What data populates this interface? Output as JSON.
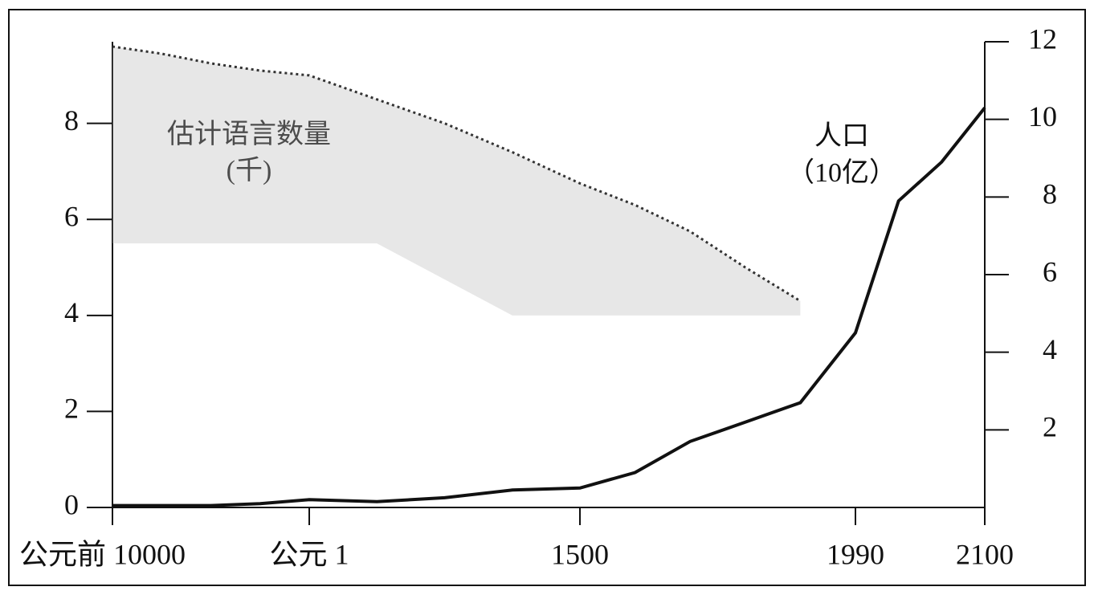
{
  "chart_data": {
    "type": "line",
    "categories": [
      "公元前 10000",
      null,
      null,
      null,
      "公元 1",
      null,
      null,
      null,
      "1500",
      null,
      null,
      null,
      null,
      "1990",
      null,
      null,
      "2100"
    ],
    "series": [
      {
        "name": "估计语言数量",
        "color": "#333333",
        "values": [
          9.6,
          9.45,
          9.25,
          9.1,
          9.0,
          8.5,
          8.0,
          7.4,
          6.75,
          6.3,
          5.75,
          5.0,
          4.3,
          null,
          null,
          null,
          null
        ]
      },
      {
        "name": "人口",
        "color": "#111111",
        "axis": "y2",
        "values": [
          0.05,
          0.05,
          0.05,
          0.1,
          0.2,
          0.15,
          0.25,
          0.45,
          0.5,
          0.9,
          1.7,
          2.2,
          2.7,
          4.5,
          7.9,
          8.9,
          10.3
        ]
      }
    ],
    "annotations": [
      "估计语言数量",
      "(千)",
      "人口",
      "（10亿）"
    ],
    "ylim": [
      0,
      9.7
    ],
    "yticks": [
      0,
      2,
      4,
      6,
      8
    ],
    "y2lim": [
      0,
      12
    ],
    "y2ticks": [
      2,
      4,
      6,
      8,
      10,
      12
    ]
  }
}
